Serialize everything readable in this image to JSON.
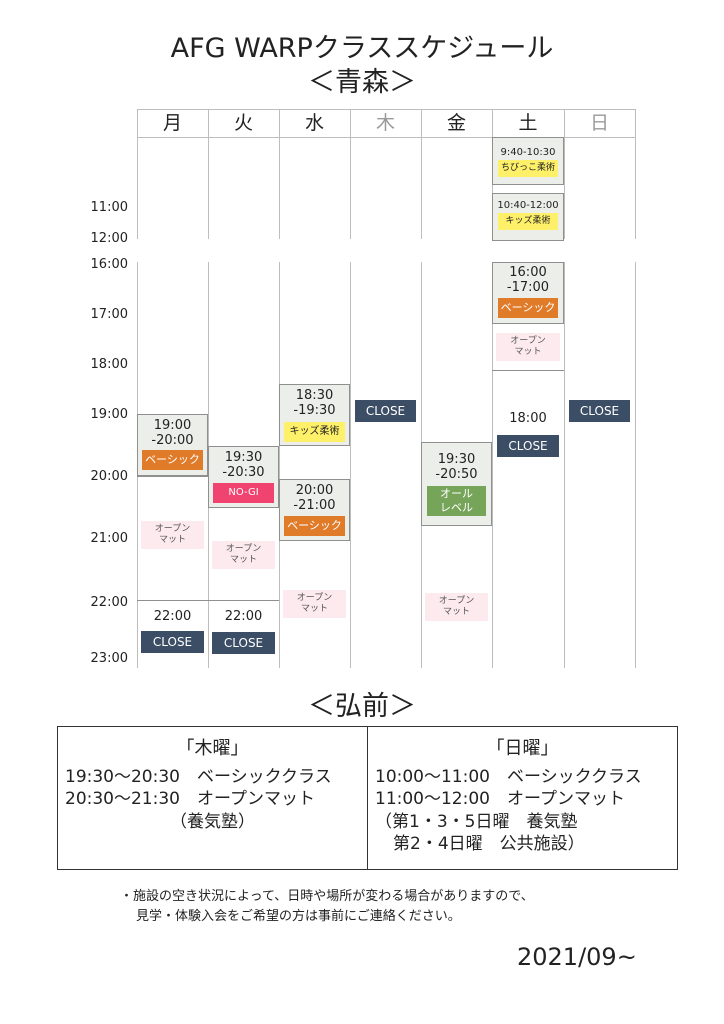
{
  "header": {
    "title": "AFG WARPクラススケジュール",
    "subtitle": "＜青森＞"
  },
  "days": [
    "月",
    "火",
    "水",
    "木",
    "金",
    "土",
    "日"
  ],
  "times": {
    "t1100": "11:00",
    "t1200": "12:00",
    "t1600": "16:00",
    "t1700": "17:00",
    "t1800": "18:00",
    "t1900": "19:00",
    "t2000": "20:00",
    "t2100": "21:00",
    "t2200": "22:00",
    "t2300": "23:00"
  },
  "mon": {
    "class_time": "19:00\n-20:00",
    "class_tag": "ベーシック",
    "open": "オープン\nマット",
    "close_time": "22:00",
    "close": "CLOSE"
  },
  "tue": {
    "class_time": "19:30\n-20:30",
    "class_tag": "NO-GI",
    "open": "オープン\nマット",
    "close_time": "22:00",
    "close": "CLOSE"
  },
  "wed": {
    "class1_time": "18:30\n-19:30",
    "class1_tag": "キッズ柔術",
    "class2_time": "20:00\n-21:00",
    "class2_tag": "ベーシック",
    "open": "オープン\nマット"
  },
  "thu": {
    "close": "CLOSE"
  },
  "fri": {
    "class_time": "19:30\n-20:50",
    "class_tag": "オール\nレベル",
    "open": "オープン\nマット"
  },
  "sat": {
    "kids1_time": "9:40-10:30",
    "kids1_tag": "ちびっこ柔術",
    "kids2_time": "10:40-12:00",
    "kids2_tag": "キッズ柔術",
    "class_time": "16:00\n-17:00",
    "class_tag": "ベーシック",
    "open": "オープン\nマット",
    "close_time": "18:00",
    "close": "CLOSE"
  },
  "sun": {
    "close": "CLOSE"
  },
  "hirosaki": {
    "title": "＜弘前＞",
    "thu_head": "「木曜」",
    "thu_lines": [
      "19:30～20:30　ベーシッククラス",
      "20:30～21:30　オープンマット",
      "（養気塾）"
    ],
    "sun_head": "「日曜」",
    "sun_lines": [
      "10:00～11:00　ベーシッククラス",
      "11:00～12:00　オープンマット",
      "（第1・3・5日曜　養気塾",
      "第2・4日曜　公共施設）"
    ]
  },
  "notes": [
    "・施設の空き状況によって、日時や場所が変わる場合がありますので、",
    "見学・体験入会をご希望の方は事前にご連絡ください。"
  ],
  "date": "2021/09~"
}
